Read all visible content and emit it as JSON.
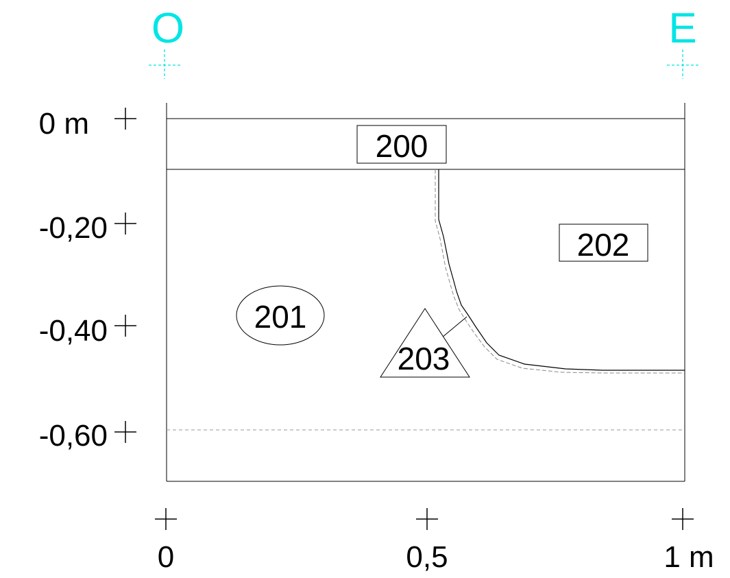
{
  "orientation": {
    "west": "O",
    "east": "E",
    "color": "#00e5e5"
  },
  "depth_axis": {
    "ticks": [
      {
        "value": 0,
        "label": "0 m"
      },
      {
        "value": -0.2,
        "label": "-0,20"
      },
      {
        "value": -0.4,
        "label": "-0,40"
      },
      {
        "value": -0.6,
        "label": "-0,60"
      }
    ]
  },
  "distance_axis": {
    "ticks": [
      {
        "value": 0,
        "label": "0"
      },
      {
        "value": 0.5,
        "label": "0,5"
      },
      {
        "value": 1,
        "label": "1 m"
      }
    ]
  },
  "units": [
    {
      "id": "200",
      "label": "200",
      "shape": "rectangle"
    },
    {
      "id": "201",
      "label": "201",
      "shape": "ellipse"
    },
    {
      "id": "202",
      "label": "202",
      "shape": "rectangle"
    },
    {
      "id": "203",
      "label": "203",
      "shape": "triangle"
    }
  ],
  "colors": {
    "line": "#000000",
    "dashed": "#999999",
    "background": "#ffffff"
  }
}
